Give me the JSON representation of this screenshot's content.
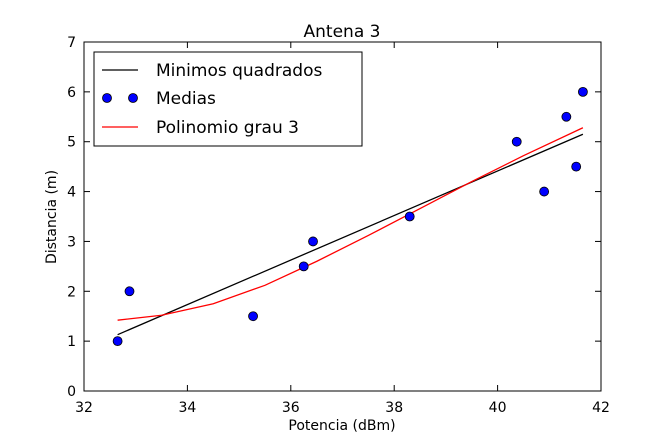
{
  "chart_data": {
    "type": "scatter",
    "title": "Antena 3",
    "xlabel": "Potencia (dBm)",
    "ylabel": "Distancia (m)",
    "xlim": [
      32,
      42
    ],
    "ylim": [
      0,
      7
    ],
    "xticks": [
      32,
      34,
      36,
      38,
      40,
      42
    ],
    "yticks": [
      0,
      1,
      2,
      3,
      4,
      5,
      6,
      7
    ],
    "grid": false,
    "legend_position": "top-left",
    "series": [
      {
        "name": "Minimos quadrados",
        "kind": "line",
        "color": "#000000",
        "x": [
          32.65,
          41.65
        ],
        "y": [
          1.13,
          5.15
        ]
      },
      {
        "name": "Medias",
        "kind": "scatter",
        "color": "#0000ff",
        "x": [
          32.65,
          32.88,
          35.27,
          36.25,
          36.43,
          38.3,
          40.37,
          40.9,
          41.33,
          41.52,
          41.65
        ],
        "y": [
          1,
          2,
          1.5,
          2.5,
          3,
          3.5,
          5,
          4,
          5.5,
          4.5,
          6
        ]
      },
      {
        "name": "Polinomio grau 3",
        "kind": "line",
        "color": "#ff0000",
        "x": [
          32.65,
          33.5,
          34.5,
          35.5,
          36.5,
          37.5,
          38.5,
          39.5,
          40.5,
          41.65
        ],
        "y": [
          1.42,
          1.52,
          1.75,
          2.12,
          2.6,
          3.12,
          3.66,
          4.2,
          4.72,
          5.28
        ]
      }
    ]
  }
}
